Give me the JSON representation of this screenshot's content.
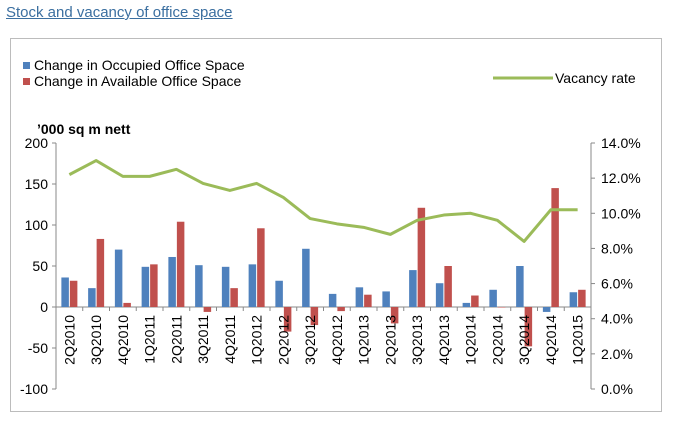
{
  "page": {
    "link_text": "Stock and vacancy of office space"
  },
  "chart_data": {
    "type": "bar+line",
    "categories": [
      "2Q2010",
      "3Q2010",
      "4Q2010",
      "1Q2011",
      "2Q2011",
      "3Q2011",
      "4Q2011",
      "1Q2012",
      "2Q2012",
      "3Q2012",
      "4Q2012",
      "1Q2013",
      "2Q2013",
      "3Q2013",
      "4Q2013",
      "1Q2014",
      "2Q2014",
      "3Q2014",
      "4Q2014",
      "1Q2015"
    ],
    "y_left_label": "’000 sq m nett",
    "y_left_lim": [
      -100,
      200
    ],
    "y_left_ticks": [
      "-100",
      "-50",
      "0",
      "50",
      "100",
      "150",
      "200"
    ],
    "y_right_lim": [
      0,
      14
    ],
    "y_right_ticks": [
      "0.0%",
      "2.0%",
      "4.0%",
      "6.0%",
      "8.0%",
      "10.0%",
      "12.0%",
      "14.0%"
    ],
    "series": [
      {
        "name": "Change in Occupied Office Space",
        "kind": "bar",
        "axis": "left",
        "color": "#4f81bd",
        "values": [
          36,
          23,
          70,
          49,
          61,
          51,
          49,
          52,
          32,
          71,
          16,
          24,
          19,
          45,
          29,
          5,
          21,
          50,
          -6,
          18
        ]
      },
      {
        "name": "Change in Available Office Space",
        "kind": "bar",
        "axis": "left",
        "color": "#c0504d",
        "values": [
          32,
          83,
          5,
          52,
          104,
          -6,
          23,
          96,
          -30,
          -22,
          -5,
          15,
          -20,
          121,
          50,
          14,
          0,
          -48,
          145,
          21
        ]
      },
      {
        "name": "Vacancy rate",
        "kind": "line",
        "axis": "right",
        "color": "#9bbb59",
        "values": [
          12.2,
          13.0,
          12.1,
          12.1,
          12.5,
          11.7,
          11.3,
          11.7,
          10.9,
          9.7,
          9.4,
          9.2,
          8.8,
          9.6,
          9.9,
          10.0,
          9.6,
          8.4,
          10.2,
          10.2
        ]
      }
    ],
    "legend_position": "top",
    "grid": false
  }
}
